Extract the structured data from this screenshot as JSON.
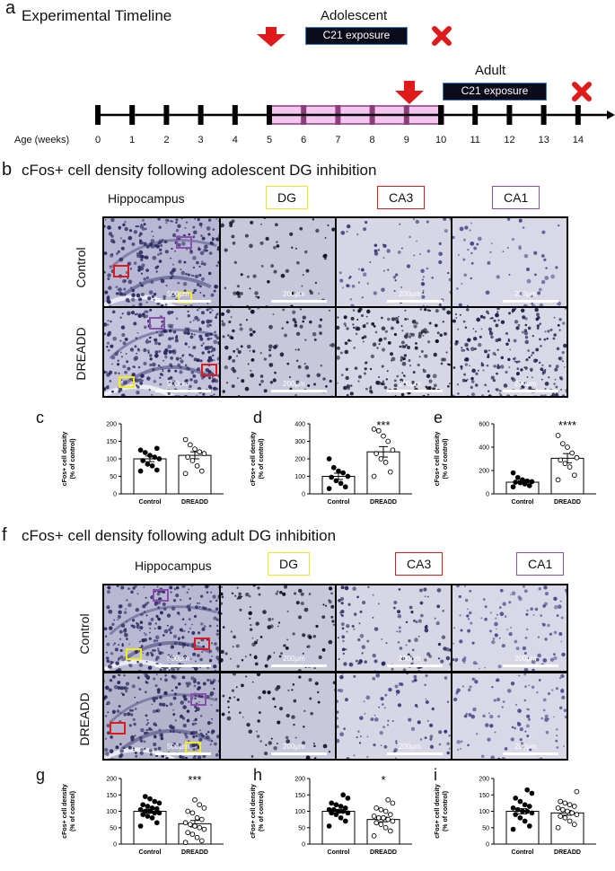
{
  "figure": {
    "letters": {
      "a": "a",
      "b": "b",
      "c": "c",
      "d": "d",
      "e": "e",
      "f": "f",
      "g": "g",
      "h": "h",
      "i": "i"
    },
    "timeline": {
      "title": "Experimental Timeline",
      "adolescent_label": "Adolescent",
      "adult_label": "Adult",
      "exposure_label": "C21 exposure",
      "axis_label": "Age (weeks)",
      "weeks": [
        "0",
        "1",
        "2",
        "3",
        "4",
        "5",
        "6",
        "7",
        "8",
        "9",
        "10",
        "11",
        "12",
        "13",
        "14"
      ],
      "colors": {
        "arrow": "#e01a1a",
        "cross": "#e01a1a",
        "window": "#f6c6f0",
        "window_border": "#8a3d7a",
        "exposure_box": "#0b0b1a"
      }
    },
    "section_b": {
      "title": "cFos+ cell density following adolescent DG inhibition",
      "col_headers": {
        "hippocampus": "Hippocampus",
        "dg": "DG",
        "ca3": "CA3",
        "ca1": "CA1"
      },
      "row_labels": {
        "control": "Control",
        "dreadd": "DREADD"
      },
      "scale_500": "500μm",
      "scale_200": "200μm"
    },
    "section_f": {
      "title": "cFos+ cell density following adult DG inhibition",
      "col_headers": {
        "hippocampus": "Hippocampus",
        "dg": "DG",
        "ca3": "CA3",
        "ca1": "CA1"
      },
      "row_labels": {
        "control": "Control",
        "dreadd": "DREADD"
      },
      "scale_500": "500μm",
      "scale_200": "200μm"
    },
    "roi_colors": {
      "dg": "#f2ea1a",
      "ca3": "#e01a1a",
      "ca1": "#8a4fb0"
    }
  },
  "chart_data": [
    {
      "id": "c",
      "type": "bar",
      "ylabel": "cFos+ cell density\n(% of control)",
      "categories": [
        "Control",
        "DREADD"
      ],
      "values": [
        100,
        110
      ],
      "errors": [
        8,
        10
      ],
      "ylim": [
        0,
        200
      ],
      "yticks": [
        0,
        50,
        100,
        150,
        200
      ],
      "significance": "",
      "points": [
        [
          65,
          68,
          80,
          85,
          95,
          100,
          105,
          110,
          118,
          125,
          130
        ],
        [
          58,
          65,
          80,
          95,
          105,
          115,
          120,
          128,
          140,
          155
        ]
      ]
    },
    {
      "id": "d",
      "type": "bar",
      "ylabel": "cFos+ cell density\n(% of control)",
      "categories": [
        "Control",
        "DREADD"
      ],
      "values": [
        100,
        240
      ],
      "errors": [
        18,
        30
      ],
      "ylim": [
        0,
        400
      ],
      "yticks": [
        0,
        100,
        200,
        300,
        400
      ],
      "significance": "***",
      "points": [
        [
          30,
          40,
          60,
          75,
          95,
          100,
          120,
          130,
          150,
          200
        ],
        [
          100,
          125,
          180,
          200,
          230,
          250,
          300,
          330,
          360,
          370
        ]
      ]
    },
    {
      "id": "e",
      "type": "bar",
      "ylabel": "cFos+ cell density\n(% of control)",
      "categories": [
        "Control",
        "DREADD"
      ],
      "values": [
        100,
        305
      ],
      "errors": [
        12,
        40
      ],
      "ylim": [
        0,
        600
      ],
      "yticks": [
        0,
        200,
        400,
        600
      ],
      "significance": "****",
      "points": [
        [
          60,
          70,
          85,
          95,
          100,
          105,
          110,
          120,
          140,
          180
        ],
        [
          120,
          160,
          230,
          260,
          290,
          310,
          350,
          400,
          430,
          500
        ]
      ]
    },
    {
      "id": "g",
      "type": "bar",
      "ylabel": "cFos+ cell density\n(% of control)",
      "categories": [
        "Control",
        "DREADD"
      ],
      "values": [
        100,
        62
      ],
      "errors": [
        6,
        10
      ],
      "ylim": [
        0,
        200
      ],
      "yticks": [
        0,
        50,
        100,
        150,
        200
      ],
      "significance": "***",
      "points": [
        [
          55,
          65,
          80,
          85,
          90,
          95,
          95,
          100,
          100,
          105,
          108,
          110,
          115,
          120,
          125,
          130,
          138,
          145
        ],
        [
          5,
          10,
          20,
          30,
          35,
          45,
          50,
          55,
          60,
          65,
          75,
          80,
          95,
          100,
          110,
          120,
          135
        ]
      ]
    },
    {
      "id": "h",
      "type": "bar",
      "ylabel": "cFos+ cell density\n(% of control)",
      "categories": [
        "Control",
        "DREADD"
      ],
      "values": [
        100,
        75
      ],
      "errors": [
        5,
        7
      ],
      "ylim": [
        0,
        200
      ],
      "yticks": [
        0,
        50,
        100,
        150,
        200
      ],
      "significance": "*",
      "points": [
        [
          55,
          70,
          80,
          90,
          95,
          95,
          100,
          100,
          105,
          105,
          110,
          115,
          120,
          125,
          140,
          150
        ],
        [
          25,
          40,
          50,
          60,
          65,
          70,
          75,
          80,
          80,
          85,
          90,
          100,
          105,
          110,
          125,
          135
        ]
      ]
    },
    {
      "id": "i",
      "type": "bar",
      "ylabel": "cFos+ cell density\n(% of control)",
      "categories": [
        "Control",
        "DREADD"
      ],
      "values": [
        100,
        95
      ],
      "errors": [
        8,
        7
      ],
      "ylim": [
        0,
        200
      ],
      "yticks": [
        0,
        50,
        100,
        150,
        200
      ],
      "significance": "",
      "points": [
        [
          45,
          55,
          70,
          80,
          90,
          95,
          100,
          100,
          105,
          110,
          115,
          120,
          130,
          140,
          155,
          165
        ],
        [
          50,
          60,
          70,
          80,
          85,
          90,
          95,
          100,
          105,
          110,
          115,
          120,
          125,
          130,
          160
        ]
      ]
    }
  ]
}
